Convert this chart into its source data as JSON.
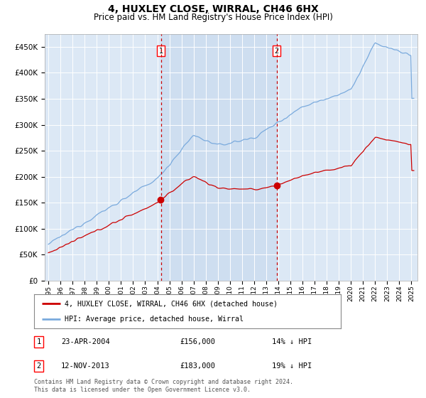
{
  "title": "4, HUXLEY CLOSE, WIRRAL, CH46 6HX",
  "subtitle": "Price paid vs. HM Land Registry's House Price Index (HPI)",
  "title_fontsize": 10,
  "subtitle_fontsize": 8.5,
  "bg_color": "#ffffff",
  "plot_bg_color": "#e8f0f8",
  "plot_bg_color2": "#dce8f5",
  "shade_color": "#ccddf0",
  "grid_color": "#ffffff",
  "hpi_color": "#7aaadd",
  "price_color": "#cc0000",
  "vline_color": "#cc0000",
  "ylim": [
    0,
    475000
  ],
  "yticks": [
    0,
    50000,
    100000,
    150000,
    200000,
    250000,
    300000,
    350000,
    400000,
    450000
  ],
  "xlabel_start": 1995,
  "xlabel_end": 2025,
  "purchase1_date": "23-APR-2004",
  "purchase1_price": 156000,
  "purchase1_pct": "14%",
  "purchase1_year": 2004.3,
  "purchase2_date": "12-NOV-2013",
  "purchase2_price": 183000,
  "purchase2_pct": "19%",
  "purchase2_year": 2013.87,
  "legend_label1": "4, HUXLEY CLOSE, WIRRAL, CH46 6HX (detached house)",
  "legend_label2": "HPI: Average price, detached house, Wirral",
  "footer": "Contains HM Land Registry data © Crown copyright and database right 2024.\nThis data is licensed under the Open Government Licence v3.0."
}
